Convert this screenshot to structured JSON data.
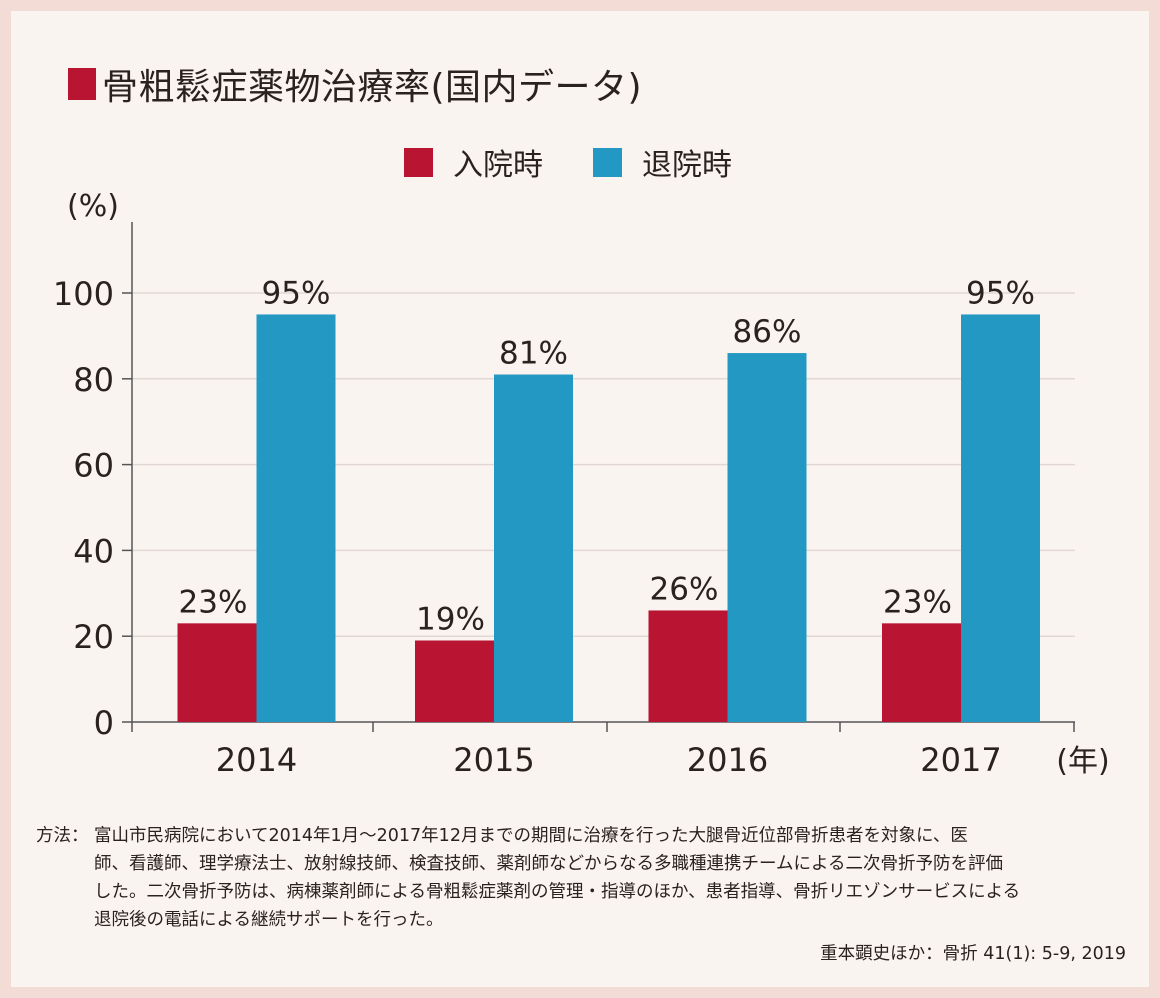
{
  "frame": {
    "border_color": "#f2dcd5",
    "background_color": "#faf4f1"
  },
  "title": "骨粗鬆症薬物治療率(国内データ)",
  "title_marker_color": "#b91431",
  "legend": [
    {
      "label": "入院時",
      "color": "#b91431"
    },
    {
      "label": "退院時",
      "color": "#2398c2"
    }
  ],
  "chart_data": {
    "type": "bar",
    "title": "骨粗鬆症薬物治療率(国内データ)",
    "categories": [
      "2014",
      "2015",
      "2016",
      "2017"
    ],
    "series": [
      {
        "name": "入院時",
        "values": [
          23,
          19,
          26,
          23
        ],
        "labels": [
          "23%",
          "19%",
          "26%",
          "23%"
        ],
        "color": "#b91431"
      },
      {
        "name": "退院時",
        "values": [
          95,
          81,
          86,
          95
        ],
        "labels": [
          "95%",
          "81%",
          "86%",
          "95%"
        ],
        "color": "#2398c2"
      }
    ],
    "xlabel": "(年)",
    "ylabel": "(%)",
    "ylim": [
      0,
      100
    ],
    "yticks": [
      0,
      20,
      40,
      60,
      80,
      100
    ],
    "grid": true,
    "legend_position": "top-center"
  },
  "note": {
    "label": "方法：",
    "lines": [
      "富山市民病院において2014年1月～2017年12月までの期間に治療を行った大腿骨近位部骨折患者を対象に、医",
      "師、看護師、理学療法士、放射線技師、検査技師、薬剤師などからなる多職種連携チームによる二次骨折予防を評価",
      "した。二次骨折予防は、病棟薬剤師による骨粗鬆症薬剤の管理・指導のほか、患者指導、骨折リエゾンサービスによる",
      "退院後の電話による継続サポートを行った。"
    ]
  },
  "citation": "重本顕史ほか：骨折 41(1): 5-9, 2019"
}
